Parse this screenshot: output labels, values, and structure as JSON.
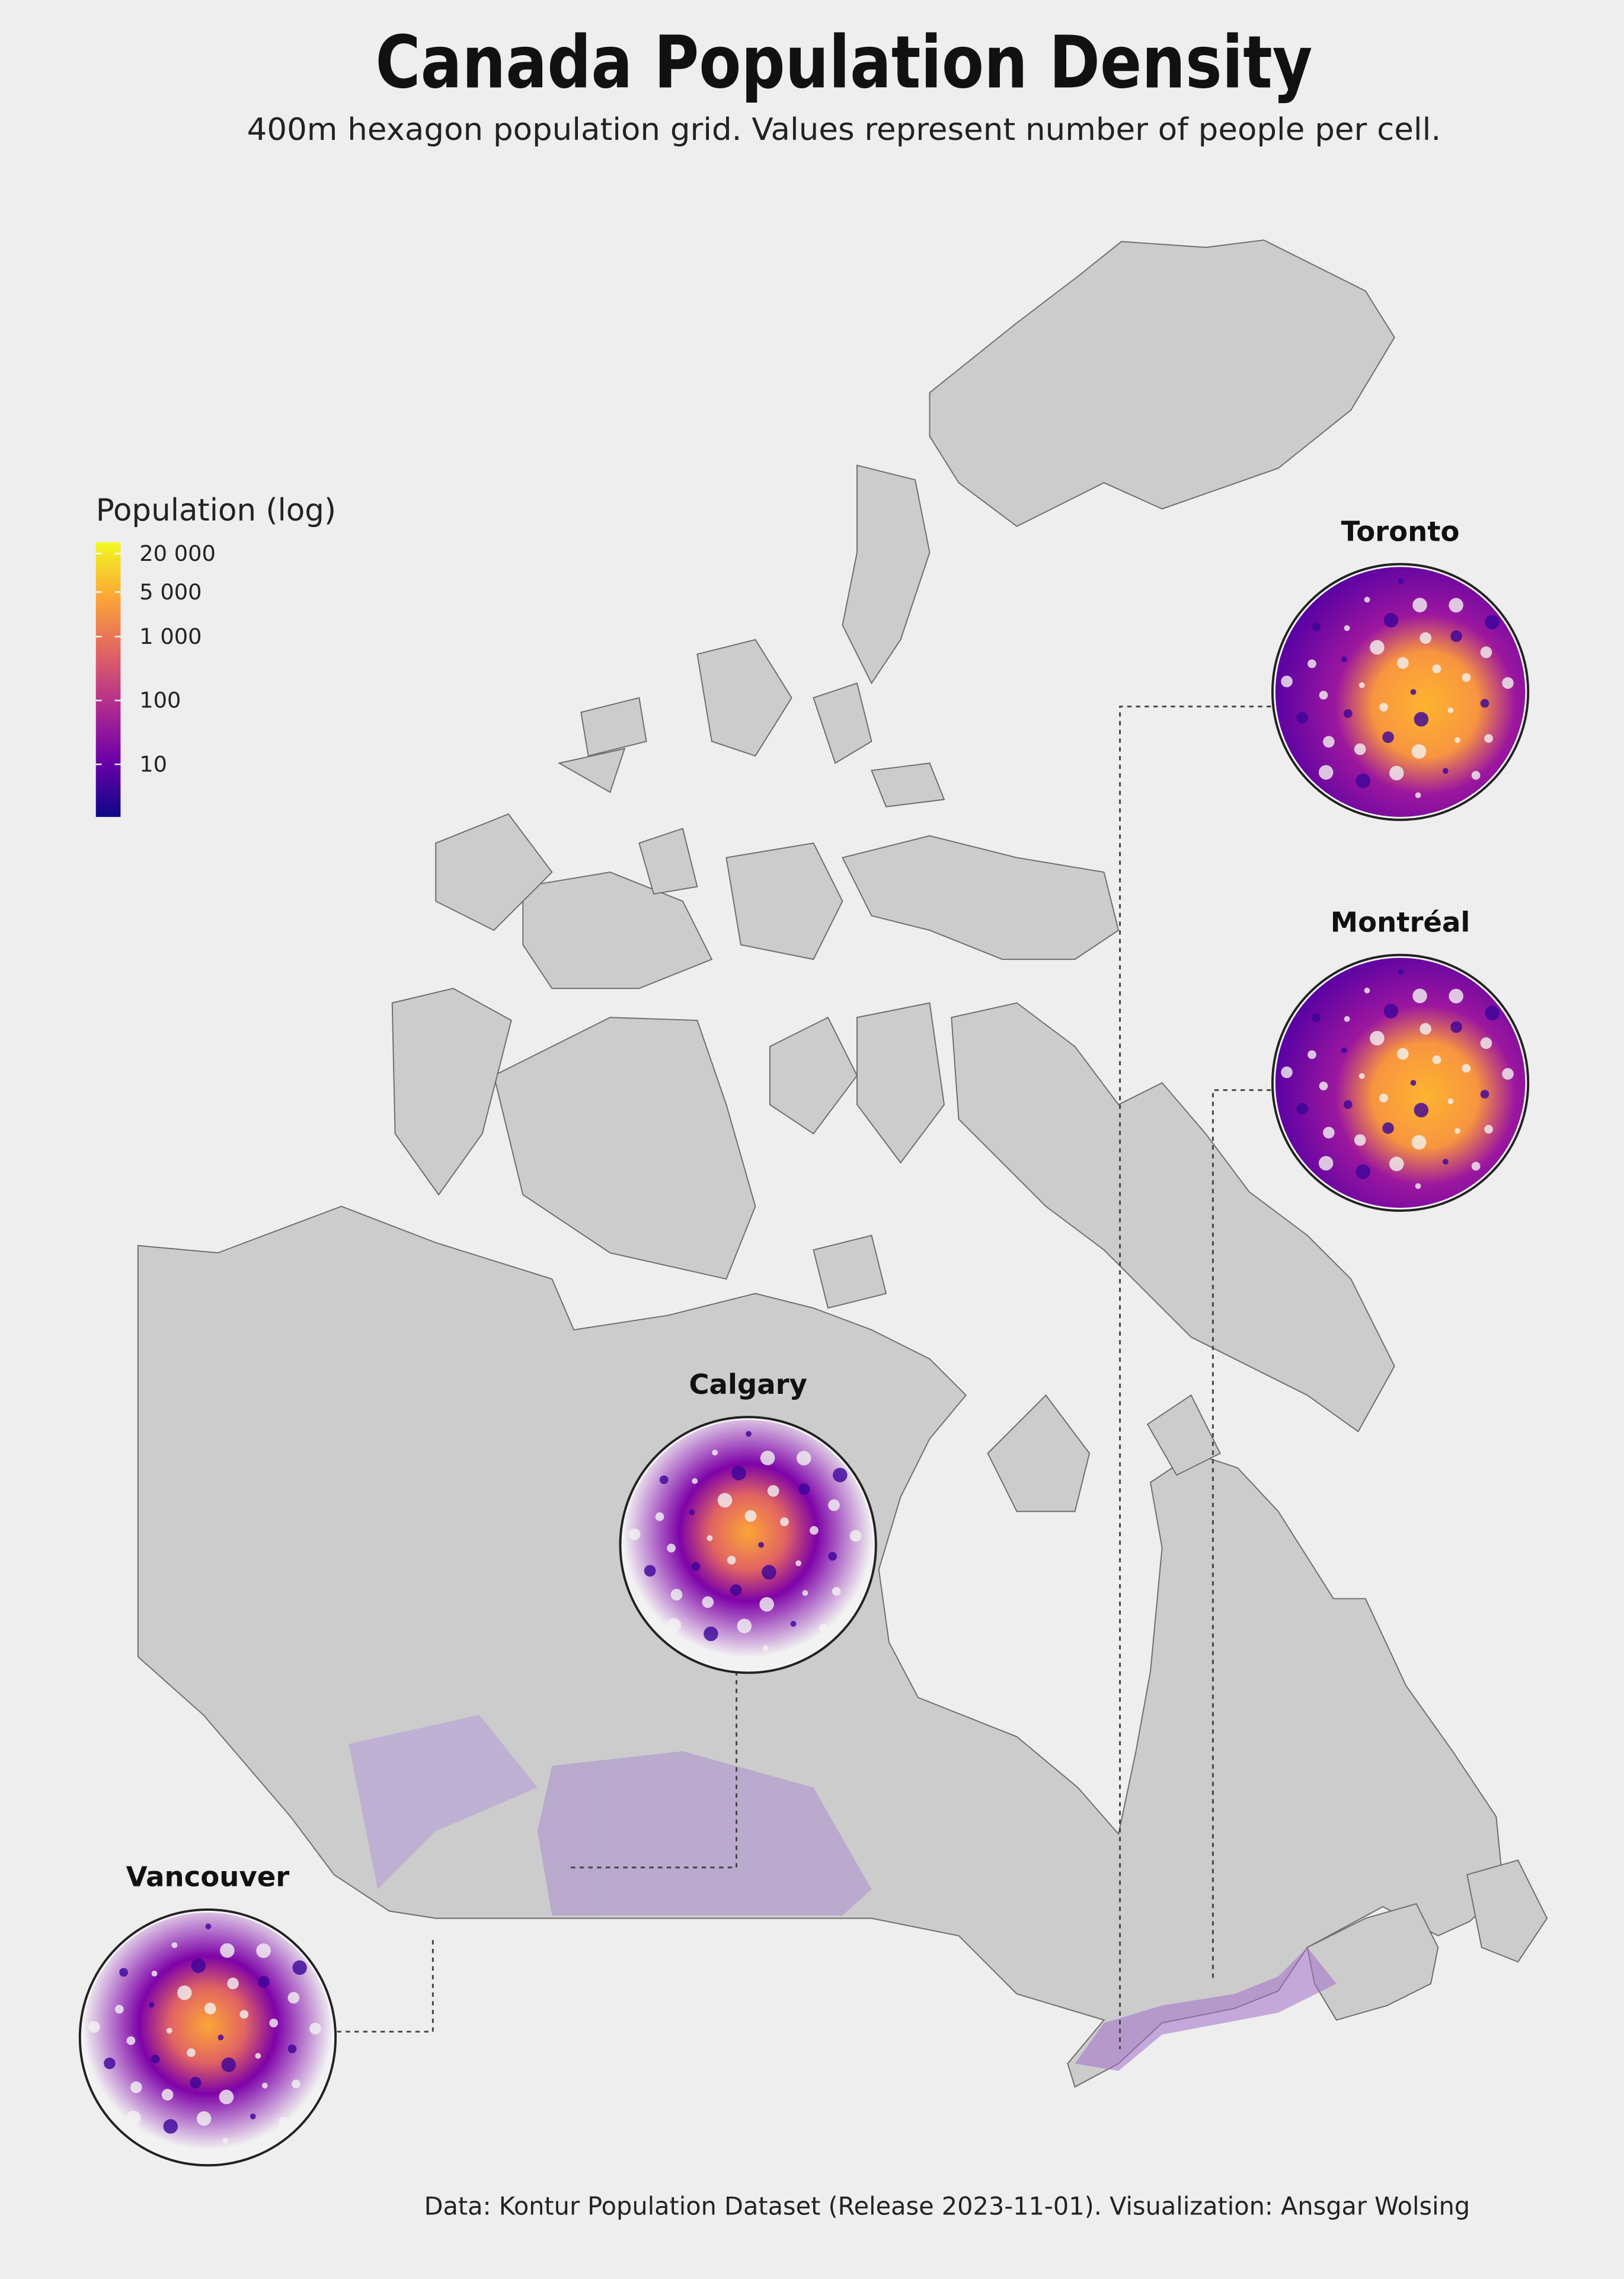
{
  "title": "Canada Population Density",
  "subtitle": "400m hexagon population grid. Values represent number of people per cell.",
  "legend": {
    "title": "Population (log)",
    "log": true,
    "lim": [
      1.5,
      30000
    ],
    "ticks": [
      {
        "value": 20000,
        "label": "20 000"
      },
      {
        "value": 5000,
        "label": "5 000"
      },
      {
        "value": 1000,
        "label": "1 000"
      },
      100,
      10
    ],
    "colors": [
      "#0d0887",
      "#6a00a8",
      "#b12a90",
      "#e16462",
      "#fca636",
      "#f0f921"
    ]
  },
  "insets": [
    "Toronto",
    "Montréal",
    "Calgary",
    "Vancouver"
  ],
  "caption": "Data: Kontur Population Dataset (Release 2023-11-01). Visualization: Ansgar Wolsing"
}
